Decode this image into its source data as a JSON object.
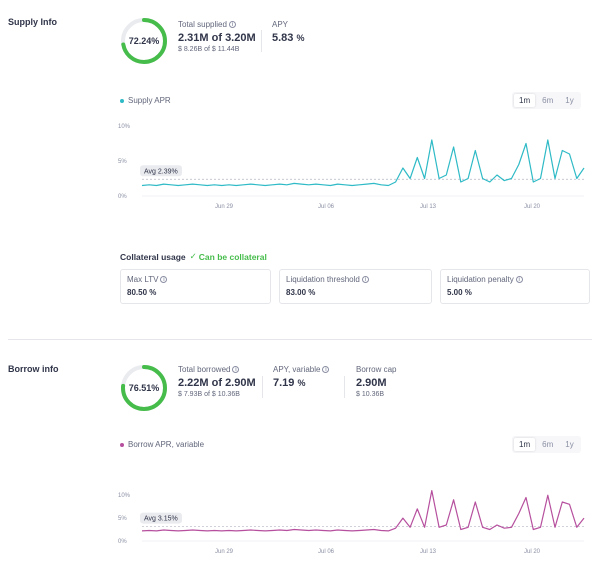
{
  "supply": {
    "title": "Supply Info",
    "percent": "72.24%",
    "percent_value": 0.7224,
    "total_label": "Total supplied",
    "total_value": "2.31M of 3.20M",
    "total_sub": "$ 8.26B of $ 11.44B",
    "apy_label": "APY",
    "apy_value": "5.83",
    "apy_unit": "%",
    "legend": "Supply APR",
    "color": "#2ebac6",
    "avg_label": "Avg 2.39%",
    "range": [
      "1m",
      "6m",
      "1y"
    ]
  },
  "collateral": {
    "title": "Collateral usage",
    "status": "Can be collateral",
    "max_ltv_label": "Max LTV",
    "max_ltv_value": "80.50 %",
    "liq_threshold_label": "Liquidation threshold",
    "liq_threshold_value": "83.00 %",
    "liq_penalty_label": "Liquidation penalty",
    "liq_penalty_value": "5.00 %"
  },
  "borrow": {
    "title": "Borrow info",
    "percent": "76.51%",
    "percent_value": 0.7651,
    "total_label": "Total borrowed",
    "total_value": "2.22M of 2.90M",
    "total_sub": "$ 7.93B of $ 10.36B",
    "apy_label": "APY, variable",
    "apy_value": "7.19",
    "apy_unit": "%",
    "cap_label": "Borrow cap",
    "cap_value": "2.90M",
    "cap_sub": "$ 10.36B",
    "legend": "Borrow APR, variable",
    "color": "#b6509e",
    "avg_label": "Avg 3.15%",
    "range": [
      "1m",
      "6m",
      "1y"
    ]
  },
  "chart_data": [
    {
      "type": "line",
      "series": [
        {
          "name": "Supply APR",
          "values": [
            1.5,
            1.6,
            1.5,
            1.7,
            1.6,
            1.5,
            1.6,
            1.7,
            1.6,
            1.5,
            1.6,
            1.5,
            1.6,
            1.5,
            1.6,
            1.7,
            1.6,
            1.5,
            1.6,
            1.7,
            1.6,
            1.8,
            1.7,
            1.6,
            1.7,
            1.6,
            1.5,
            1.7,
            1.6,
            1.5,
            1.6,
            1.7,
            1.8,
            1.6,
            1.5,
            2.0,
            4.0,
            2.5,
            5.5,
            2.5,
            8.0,
            2.5,
            3.0,
            7.0,
            2.0,
            2.5,
            6.5,
            2.5,
            2.0,
            3.0,
            2.2,
            2.5,
            4.5,
            7.5,
            2.0,
            2.5,
            8.0,
            2.5,
            6.5,
            6.0,
            2.5,
            4.0
          ]
        }
      ],
      "x_ticks": [
        "Jun 29",
        "Jul 06",
        "Jul 13",
        "Jul 20"
      ],
      "y_ticks": [
        "10%",
        "5%",
        "0%"
      ],
      "ylim": [
        0,
        10
      ],
      "average": 2.39
    },
    {
      "type": "line",
      "series": [
        {
          "name": "Borrow APR, variable",
          "values": [
            2.2,
            2.3,
            2.2,
            2.4,
            2.3,
            2.2,
            2.3,
            2.4,
            2.3,
            2.2,
            2.3,
            2.2,
            2.3,
            2.2,
            2.3,
            2.4,
            2.3,
            2.2,
            2.3,
            2.4,
            2.3,
            2.5,
            2.4,
            2.3,
            2.4,
            2.3,
            2.2,
            2.4,
            2.3,
            2.2,
            2.3,
            2.4,
            2.5,
            2.3,
            2.2,
            2.8,
            5.0,
            3.0,
            7.0,
            3.0,
            11.0,
            3.0,
            3.5,
            9.0,
            2.5,
            3.0,
            8.5,
            3.0,
            2.5,
            3.5,
            2.8,
            3.0,
            6.0,
            9.5,
            2.5,
            3.0,
            10.0,
            3.0,
            8.5,
            8.0,
            3.0,
            5.0
          ]
        }
      ],
      "x_ticks": [
        "Jun 29",
        "Jul 06",
        "Jul 13",
        "Jul 20"
      ],
      "y_ticks": [
        "10%",
        "5%",
        "0%"
      ],
      "ylim": [
        0,
        12
      ],
      "average": 3.15
    }
  ]
}
